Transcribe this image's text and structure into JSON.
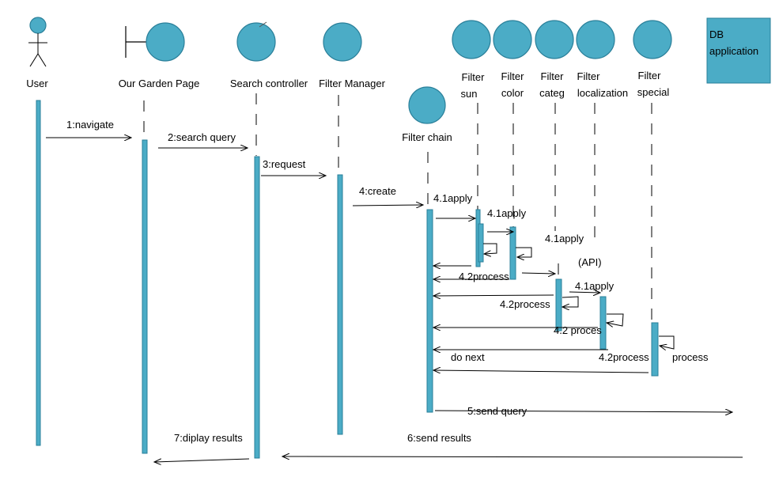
{
  "participants": {
    "user": "User",
    "garden": "Our Garden Page",
    "search": "Search controller",
    "fmanager": "Filter Manager",
    "fchain": "Filter chain",
    "sun1": "Filter",
    "sun2": "sun",
    "color1": "Filter",
    "color2": "color",
    "categ1": "Filter",
    "categ2": "categ",
    "loc1": "Filter",
    "loc2": "localization",
    "spec1": "Filter",
    "spec2": "special",
    "db1": "DB",
    "db2": "application"
  },
  "messages": {
    "m1": "1:navigate",
    "m2": "2:search query",
    "m3": "3:request",
    "m4": "4:create",
    "m41a": "4.1apply",
    "m41b": "4.1apply",
    "m41c": "4.1apply",
    "api": "(API)",
    "m41d": "4.1apply",
    "m42a": "4.2process",
    "m42b": "4.2process",
    "m42c": "4.2 proces",
    "m42d": "4.2process",
    "donext": "do next",
    "process": "process",
    "m5": "5:send query",
    "m6": "6:send results",
    "m7": "7:diplay results"
  }
}
